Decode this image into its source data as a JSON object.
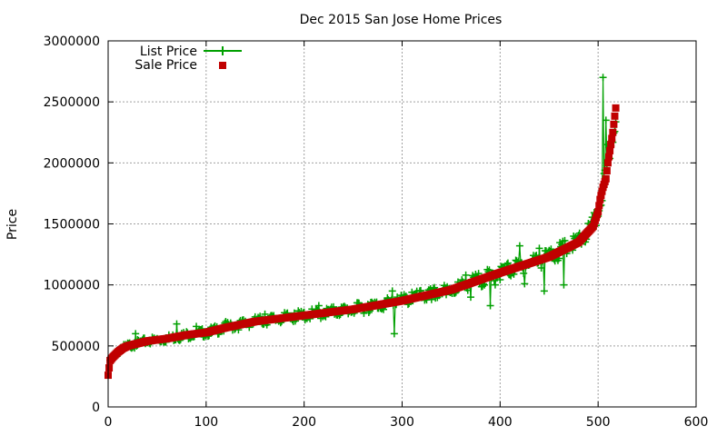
{
  "chart_data": {
    "type": "scatter",
    "title": "Dec 2015 San Jose Home Prices",
    "xlabel": "",
    "ylabel": "Price",
    "xlim": [
      0,
      600
    ],
    "ylim": [
      0,
      3000000
    ],
    "x_ticks": [
      0,
      100,
      200,
      300,
      400,
      500,
      600
    ],
    "y_ticks": [
      0,
      500000,
      1000000,
      1500000,
      2000000,
      2500000,
      3000000
    ],
    "x_tick_labels": [
      "0",
      "100",
      "200",
      "300",
      "400",
      "500",
      "600"
    ],
    "y_tick_labels": [
      "0",
      "500000",
      "1000000",
      "1500000",
      "2000000",
      "2500000",
      "3000000"
    ],
    "grid": true,
    "legend_position": "top-left",
    "colors": {
      "list": "#00a000",
      "sale": "#c00000"
    },
    "sale_price_curve": {
      "x": [
        0,
        2,
        5,
        10,
        15,
        20,
        30,
        40,
        50,
        60,
        80,
        100,
        120,
        150,
        200,
        250,
        300,
        350,
        400,
        450,
        480,
        495,
        500,
        502,
        505,
        508,
        510,
        512,
        515,
        518
      ],
      "y": [
        260000,
        380000,
        410000,
        450000,
        480000,
        500000,
        520000,
        540000,
        550000,
        560000,
        590000,
        610000,
        650000,
        700000,
        750000,
        800000,
        870000,
        960000,
        1100000,
        1230000,
        1350000,
        1480000,
        1600000,
        1700000,
        1800000,
        1870000,
        2000000,
        2100000,
        2250000,
        2450000
      ]
    },
    "list_price_outliers": {
      "x": [
        28,
        70,
        90,
        120,
        160,
        190,
        215,
        240,
        265,
        290,
        292,
        295,
        310,
        330,
        345,
        365,
        370,
        385,
        390,
        395,
        420,
        425,
        440,
        445,
        465,
        470,
        505,
        508,
        510
      ],
      "y": [
        600000,
        680000,
        660000,
        700000,
        760000,
        770000,
        830000,
        820000,
        840000,
        950000,
        600000,
        900000,
        940000,
        880000,
        920000,
        1080000,
        900000,
        1050000,
        830000,
        1000000,
        1320000,
        1010000,
        1300000,
        950000,
        1000000,
        1300000,
        2700000,
        2350000,
        2150000
      ]
    },
    "series": [
      {
        "name": "List Price"
      },
      {
        "name": "Sale Price"
      }
    ]
  }
}
